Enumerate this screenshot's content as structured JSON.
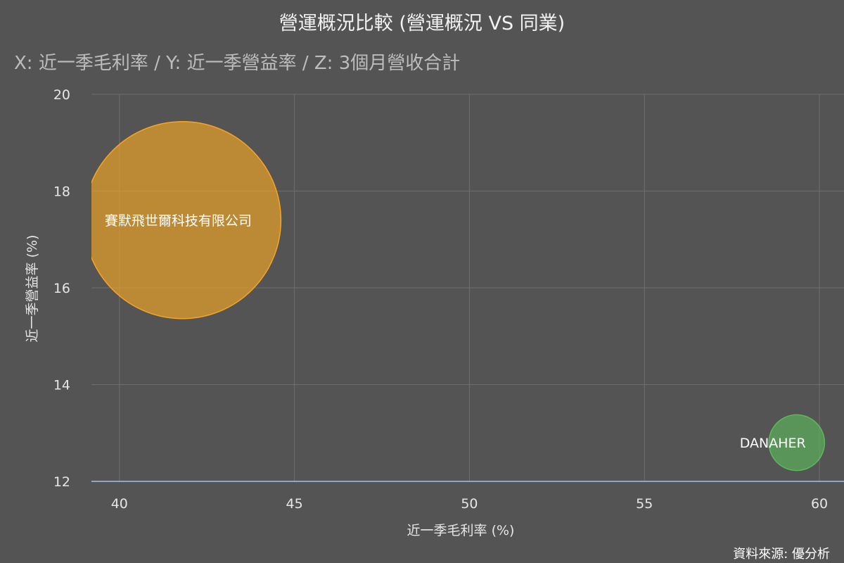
{
  "chart_data": {
    "type": "scatter",
    "variant": "bubble",
    "title": "營運概況比較 (營運概況 VS 同業)",
    "subtitle": "X: 近一季毛利率 / Y: 近一季營益率 / Z: 3個月營收合計",
    "xlabel": "近一季毛利率 (%)",
    "ylabel": "近一季營益率 (%)",
    "xlim": [
      39.2,
      60.3
    ],
    "ylim": [
      12,
      20
    ],
    "xticks": [
      40,
      45,
      50,
      55,
      60
    ],
    "yticks": [
      12,
      14,
      16,
      18,
      20
    ],
    "grid": true,
    "credit": "資料來源: 優分析",
    "series": [
      {
        "label": "賽默飛世爾科技有限公司",
        "x": 41.8,
        "y": 17.4,
        "z": 1.0,
        "color": "#f5a623"
      },
      {
        "label": "DANAHER",
        "x": 59.35,
        "y": 12.8,
        "z": 0.08,
        "color": "#5cb85c"
      }
    ]
  }
}
